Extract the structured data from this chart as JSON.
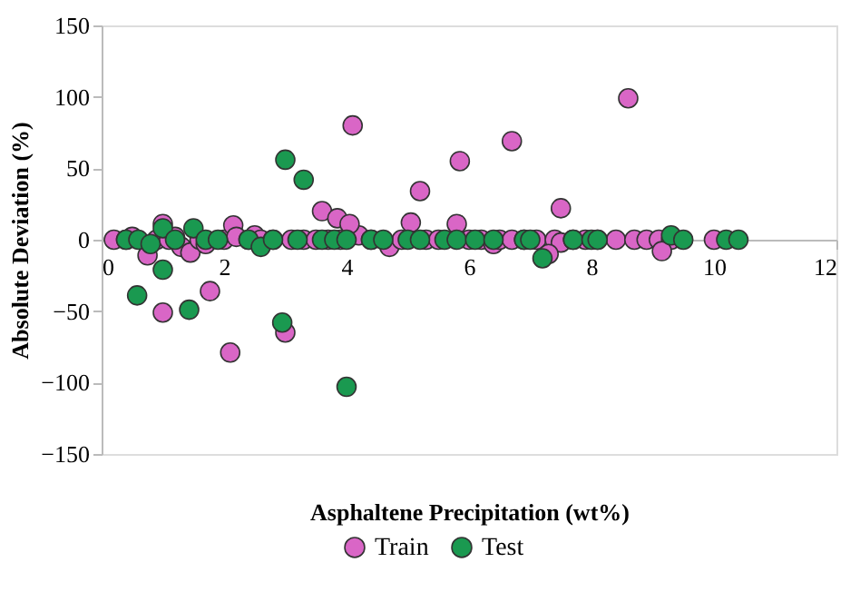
{
  "chart_data": {
    "type": "scatter",
    "xlabel": "Asphaltene Precipitation (wt%)",
    "ylabel": "Absolute Deviation (%)",
    "xlim": [
      0,
      12
    ],
    "xticks": [
      0,
      2,
      4,
      6,
      8,
      10,
      12
    ],
    "ylim": [
      -150,
      150
    ],
    "yticks": [
      -150,
      -100,
      -50,
      0,
      50,
      100,
      150
    ],
    "grid": false,
    "legend": "bottom",
    "marker": "circle",
    "series": [
      {
        "name": "Train",
        "color": "#d966c6",
        "x": [
          0.2,
          0.4,
          0.5,
          0.75,
          0.9,
          1.0,
          1.1,
          1.2,
          1.3,
          1.45,
          1.6,
          1.7,
          2.0,
          2.15,
          2.2,
          2.4,
          2.5,
          2.6,
          2.8,
          3.1,
          3.3,
          3.5,
          3.7,
          3.9,
          4.2,
          4.4,
          4.7,
          4.9,
          5.3,
          5.5,
          6.0,
          6.2,
          6.4,
          6.5,
          6.7,
          6.9,
          7.1,
          7.4,
          7.5,
          7.7,
          7.9,
          8.1,
          8.4,
          8.7,
          8.9,
          9.1,
          9.3,
          10.0,
          4.1,
          3.6,
          3.85,
          4.05,
          5.2,
          5.85,
          5.05,
          5.8,
          8.6,
          6.7,
          7.5,
          7.3,
          9.15,
          1.0,
          1.77,
          2.1,
          3.0
        ],
        "values": [
          0,
          0,
          2,
          -11,
          0,
          11,
          0,
          2,
          -5,
          -9,
          0,
          -3,
          0,
          10,
          2,
          0,
          3,
          0,
          0,
          0,
          0,
          0,
          0,
          0,
          3,
          0,
          -5,
          0,
          0,
          0,
          0,
          0,
          -3,
          0,
          0,
          0,
          0,
          0,
          -2,
          0,
          0,
          0,
          0,
          0,
          0,
          0,
          0,
          0,
          80,
          20,
          15,
          11,
          34,
          55,
          12,
          11,
          99,
          69,
          22,
          -10,
          -8,
          -51,
          -36,
          -79,
          -65
        ]
      },
      {
        "name": "Test",
        "color": "#1a9950",
        "x": [
          0.4,
          0.6,
          0.8,
          1.0,
          1.2,
          1.5,
          1.7,
          1.9,
          2.4,
          2.6,
          2.8,
          3.2,
          3.6,
          3.8,
          4.0,
          4.4,
          4.6,
          5.0,
          5.2,
          5.6,
          5.8,
          6.1,
          6.4,
          6.9,
          7.0,
          7.7,
          8.0,
          8.1,
          9.3,
          9.5,
          10.2,
          10.4,
          3.0,
          3.3,
          7.2,
          0.58,
          1.0,
          1.43,
          2.95,
          4.0
        ],
        "values": [
          0,
          0,
          -3,
          8,
          0,
          8,
          0,
          0,
          0,
          -5,
          0,
          0,
          0,
          0,
          0,
          0,
          0,
          0,
          0,
          0,
          0,
          0,
          0,
          0,
          0,
          0,
          0,
          0,
          3,
          0,
          0,
          0,
          56,
          42,
          -13,
          -39,
          -21,
          -49,
          -58,
          -103
        ]
      }
    ]
  }
}
